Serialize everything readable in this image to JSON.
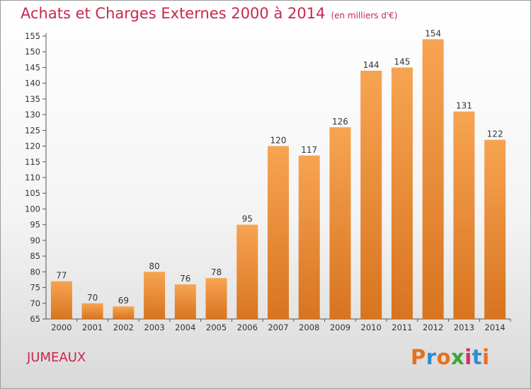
{
  "header": {
    "title": "Achats et Charges Externes 2000 à 2014",
    "unit": "(en milliers d'€)"
  },
  "footer": {
    "commune": "JUMEAUX",
    "logo": "Proxiti",
    "logo_colors": [
      "#e8701a",
      "#2b8fd1",
      "#e8701a",
      "#3aa53a",
      "#d52c6a",
      "#2b8fd1",
      "#e8701a"
    ]
  },
  "chart_data": {
    "type": "bar",
    "categories": [
      "2000",
      "2001",
      "2002",
      "2003",
      "2004",
      "2005",
      "2006",
      "2007",
      "2008",
      "2009",
      "2010",
      "2011",
      "2012",
      "2013",
      "2014"
    ],
    "values": [
      77,
      70,
      69,
      80,
      76,
      78,
      95,
      120,
      117,
      126,
      144,
      145,
      154,
      131,
      122
    ],
    "title": "Achats et Charges Externes 2000 à 2014",
    "xlabel": "",
    "ylabel": "",
    "ylim": [
      65,
      155
    ],
    "yticks": [
      65,
      70,
      75,
      80,
      85,
      90,
      95,
      100,
      105,
      110,
      115,
      120,
      125,
      130,
      135,
      140,
      145,
      150,
      155
    ],
    "bar_color_top": "#f7a452",
    "bar_color_bottom": "#d8741f",
    "grid": false,
    "legend": "none"
  }
}
